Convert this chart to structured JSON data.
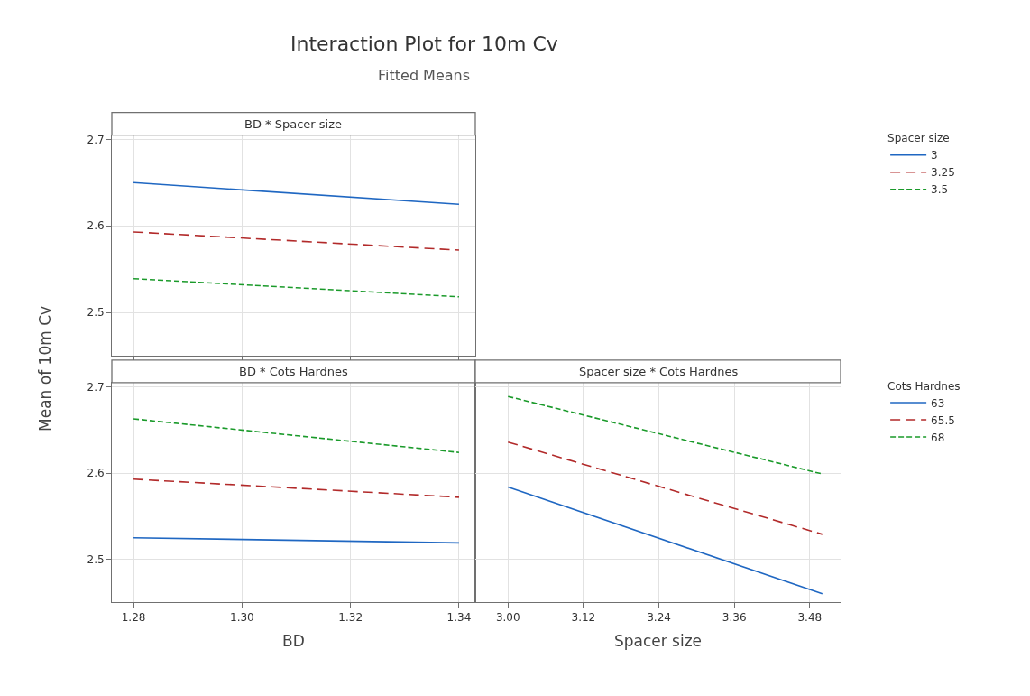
{
  "chart_data": [
    {
      "type": "line",
      "title": "Interaction Plot for 10m Cv",
      "subtitle": "Fitted Means",
      "ylabel": "Mean of 10m Cv",
      "annotations": [
        "BD * Spacer size"
      ],
      "legend_title": "Spacer size",
      "legend": "right",
      "grid": true,
      "tick_labels": "y",
      "x": [
        1.28,
        1.34
      ],
      "xlim": [
        1.276,
        1.343
      ],
      "xticks": [
        {
          "value": 1.28,
          "label": null
        },
        {
          "value": 1.3,
          "label": null
        },
        {
          "value": 1.32,
          "label": null
        },
        {
          "value": 1.34,
          "label": null
        }
      ],
      "ylim": [
        2.45,
        2.705
      ],
      "yticks": [
        2.5,
        2.6,
        2.7
      ],
      "series": [
        {
          "name": "3",
          "color": "#1f67c2",
          "line_style": "solid",
          "values": [
            2.65,
            2.625
          ]
        },
        {
          "name": "3.25",
          "color": "#b22a2a",
          "line_style": "dashed",
          "values": [
            2.593,
            2.572
          ]
        },
        {
          "name": "3.5",
          "color": "#1a9a2a",
          "line_style": "dotted",
          "values": [
            2.539,
            2.518
          ]
        }
      ]
    },
    {
      "type": "line",
      "annotations": [
        "BD * Cots Hardnes"
      ],
      "xlabel": "BD",
      "grid": true,
      "x": [
        1.28,
        1.34
      ],
      "xlim": [
        1.276,
        1.343
      ],
      "xticks": [
        {
          "value": 1.28,
          "label": "1.28"
        },
        {
          "value": 1.3,
          "label": "1.30"
        },
        {
          "value": 1.32,
          "label": "1.32"
        },
        {
          "value": 1.34,
          "label": "1.34"
        }
      ],
      "ylim": [
        2.45,
        2.705
      ],
      "yticks": [
        2.5,
        2.6,
        2.7
      ],
      "series": [
        {
          "color": "#1f67c2",
          "line_style": "solid",
          "values": [
            2.525,
            2.519
          ]
        },
        {
          "color": "#b22a2a",
          "line_style": "dashed",
          "values": [
            2.593,
            2.572
          ]
        },
        {
          "color": "#1a9a2a",
          "line_style": "dotted",
          "values": [
            2.663,
            2.624
          ]
        }
      ]
    },
    {
      "type": "line",
      "annotations": [
        "Spacer size * Cots Hardnes"
      ],
      "xlabel": "Spacer size",
      "legend_title": "Cots Hardnes",
      "legend": "right",
      "grid": true,
      "tick_labels": "x",
      "x": [
        3.0,
        3.5
      ],
      "xlim": [
        2.948,
        3.529
      ],
      "xticks": [
        {
          "value": 3.0,
          "label": "3.00"
        },
        {
          "value": 3.12,
          "label": "3.12"
        },
        {
          "value": 3.24,
          "label": "3.24"
        },
        {
          "value": 3.36,
          "label": "3.36"
        },
        {
          "value": 3.48,
          "label": "3.48"
        }
      ],
      "ylim": [
        2.45,
        2.705
      ],
      "yticks": [
        {
          "value": 2.5,
          "label": null
        },
        {
          "value": 2.6,
          "label": null
        },
        {
          "value": 2.7,
          "label": null
        }
      ],
      "series": [
        {
          "name": "63",
          "color": "#1f67c2",
          "line_style": "solid",
          "values": [
            2.584,
            2.46
          ]
        },
        {
          "name": "65.5",
          "color": "#b22a2a",
          "line_style": "dashed",
          "values": [
            2.636,
            2.529
          ]
        },
        {
          "name": "68",
          "color": "#1a9a2a",
          "line_style": "dotted",
          "values": [
            2.689,
            2.599
          ]
        }
      ]
    }
  ]
}
